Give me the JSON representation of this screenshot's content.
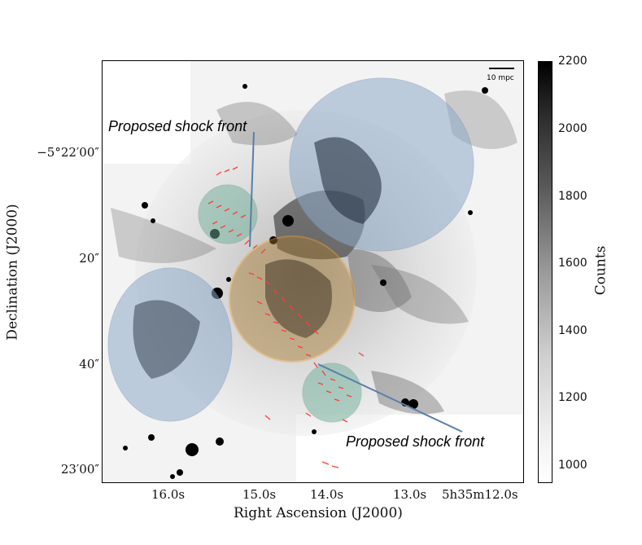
{
  "figure": {
    "annotations": {
      "shock_upper": "Proposed shock front",
      "shock_lower": "Proposed shock front",
      "scale_bar": "10 mpc"
    },
    "x_axis": {
      "title": "Right Ascension (J2000)",
      "ticks": [
        "16.0$^s$",
        "15.0$^s$",
        "14.0$^s$",
        "13.0$^s$",
        "5$^h$35$^m$12.0$^s$"
      ],
      "tick_text": [
        "16.0s",
        "15.0s",
        "14.0s",
        "13.0s",
        "5h35m12.0s"
      ]
    },
    "y_axis": {
      "title": "Declination (J2000)",
      "tick_text": [
        "−5°22′00″",
        "20″",
        "40″",
        "23′00″"
      ]
    },
    "colorbar": {
      "title": "Counts",
      "ticks": [
        "2200",
        "2000",
        "1800",
        "1600",
        "1400",
        "1200",
        "1000"
      ]
    },
    "colors": {
      "blue_region": "#8fa9c9",
      "green_region": "#6fae9a",
      "orange_circle": "#f0a030",
      "pointer_line": "#5a7fa6",
      "vectors": "#ff3b3b"
    }
  }
}
